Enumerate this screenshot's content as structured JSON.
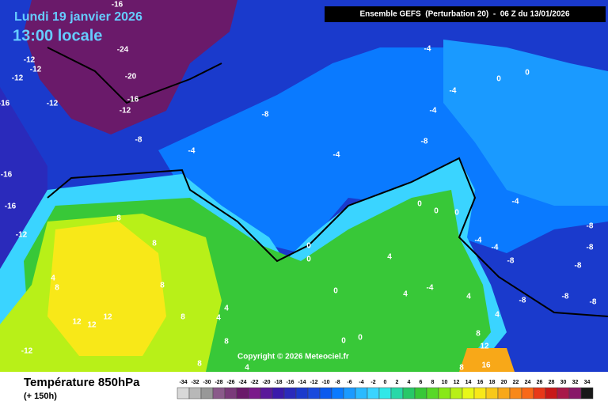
{
  "header": {
    "date": "Lundi 19 janvier 2026",
    "time": "13:00 locale",
    "model": "Ensemble GEFS  (Perturbation 20)  -  06 Z du 13/01/2026"
  },
  "map": {
    "labels": [
      "-16",
      "-24",
      "-12",
      "-12",
      "-12",
      "-20",
      "-12",
      "-16",
      "-12",
      "-16",
      "-8",
      "-8",
      "-4",
      "-4",
      "-4",
      "-4",
      "-8",
      "0",
      "0",
      "-4",
      "-16",
      "-16",
      "-12",
      "8",
      "8",
      "4",
      "8",
      "8",
      "0",
      "0",
      "0",
      "0",
      "0",
      "-4",
      "-4",
      "-4",
      "-8",
      "-8",
      "-8",
      "-8",
      "-8",
      "-8",
      "-8",
      "4",
      "4",
      "-4",
      "0",
      "4",
      "4",
      "8",
      "12",
      "12",
      "12",
      "4",
      "4",
      "0",
      "0",
      "8",
      "8",
      "4",
      "-12",
      "8",
      "12",
      "16",
      "8"
    ],
    "copyright": "Copyright © 2026 Meteociel.fr"
  },
  "footer": {
    "variable": "Température 850hPa",
    "lead": "(+ 150h)"
  },
  "legend": {
    "ticks": [
      -34,
      -32,
      -30,
      -28,
      -26,
      -24,
      -22,
      -20,
      -18,
      -16,
      -14,
      -12,
      -10,
      -8,
      -6,
      -4,
      -2,
      0,
      2,
      4,
      6,
      8,
      10,
      12,
      14,
      16,
      18,
      20,
      22,
      24,
      26,
      28,
      30,
      32,
      34
    ],
    "colors": [
      "#d8d8d8",
      "#b8b8b8",
      "#989898",
      "#8a5a8a",
      "#7a3a7a",
      "#6a1a6a",
      "#7a1a8a",
      "#5a1a9a",
      "#3a1aaa",
      "#2a2abb",
      "#1a3acc",
      "#1a4add",
      "#0a5aee",
      "#0a7aff",
      "#1a9aff",
      "#2abaff",
      "#3ad4ff",
      "#30e8e8",
      "#28d8a8",
      "#28c868",
      "#38c838",
      "#58d828",
      "#88e818",
      "#b8f018",
      "#e8f818",
      "#f8e818",
      "#f8c818",
      "#f8a818",
      "#f88818",
      "#f86818",
      "#e83818",
      "#c81818",
      "#a81848",
      "#881868",
      "#181818"
    ]
  }
}
